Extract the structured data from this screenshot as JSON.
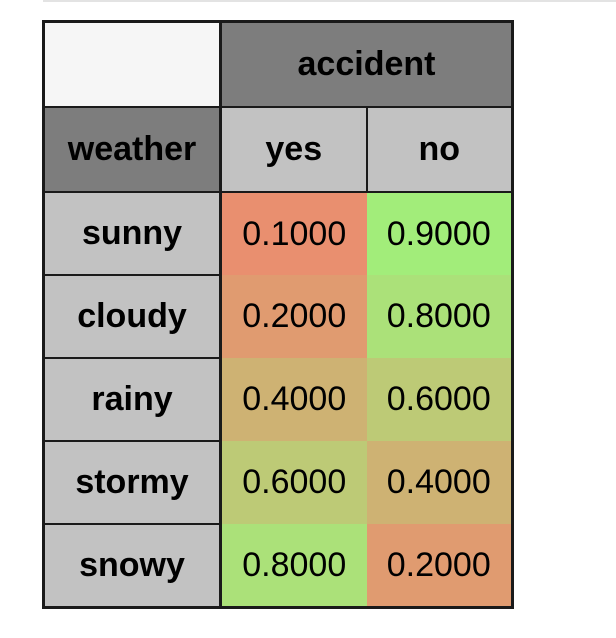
{
  "table": {
    "child_variable": "accident",
    "parent_variable": "weather",
    "child_states": [
      "yes",
      "no"
    ],
    "rows": [
      {
        "label": "sunny",
        "values": [
          "0.1000",
          "0.9000"
        ]
      },
      {
        "label": "cloudy",
        "values": [
          "0.2000",
          "0.8000"
        ]
      },
      {
        "label": "rainy",
        "values": [
          "0.4000",
          "0.6000"
        ]
      },
      {
        "label": "stormy",
        "values": [
          "0.6000",
          "0.4000"
        ]
      },
      {
        "label": "snowy",
        "values": [
          "0.8000",
          "0.2000"
        ]
      }
    ]
  },
  "colors": {
    "header_dark": "#7d7d7d",
    "header_light": "#c2c2c2",
    "corner": "#f6f6f6",
    "cell_low": "#e98f6f",
    "cell_high": "#a2ed7a"
  }
}
